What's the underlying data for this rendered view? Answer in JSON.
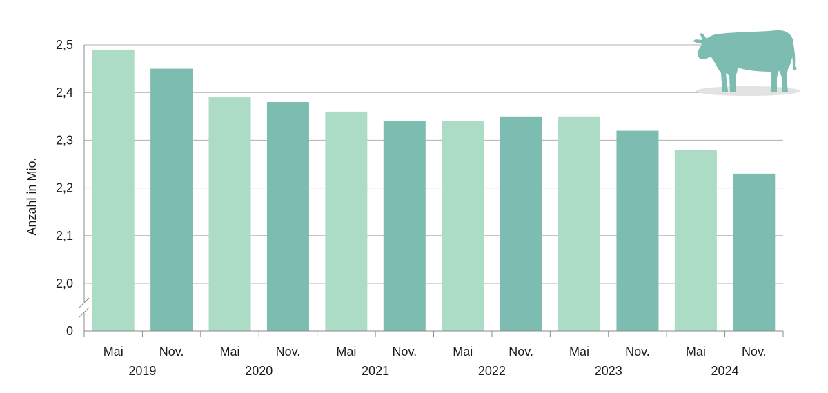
{
  "chart_data": {
    "type": "bar",
    "title": "",
    "xlabel": "",
    "ylabel": "Anzahl in Mio.",
    "ylim": [
      2.0,
      2.5
    ],
    "y_axis_break": true,
    "y_zero_label": "0",
    "y_ticks": [
      "2,0",
      "2,1",
      "2,2",
      "2,3",
      "2,4",
      "2,5"
    ],
    "y_tick_values": [
      2.0,
      2.1,
      2.2,
      2.3,
      2.4,
      2.5
    ],
    "grid": true,
    "icon": "cow-icon",
    "colors": {
      "mai": "#acdcc6",
      "nov": "#7dbcb0",
      "icon": "#7dbcb0",
      "icon_shadow": "#e3e3e3"
    },
    "groups": [
      {
        "year": "2019",
        "bars": [
          {
            "month": "Mai",
            "value": 2.49
          },
          {
            "month": "Nov.",
            "value": 2.45
          }
        ]
      },
      {
        "year": "2020",
        "bars": [
          {
            "month": "Mai",
            "value": 2.39
          },
          {
            "month": "Nov.",
            "value": 2.38
          }
        ]
      },
      {
        "year": "2021",
        "bars": [
          {
            "month": "Mai",
            "value": 2.36
          },
          {
            "month": "Nov.",
            "value": 2.34
          }
        ]
      },
      {
        "year": "2022",
        "bars": [
          {
            "month": "Mai",
            "value": 2.34
          },
          {
            "month": "Nov.",
            "value": 2.35
          }
        ]
      },
      {
        "year": "2023",
        "bars": [
          {
            "month": "Mai",
            "value": 2.35
          },
          {
            "month": "Nov.",
            "value": 2.32
          }
        ]
      },
      {
        "year": "2024",
        "bars": [
          {
            "month": "Mai",
            "value": 2.28
          },
          {
            "month": "Nov.",
            "value": 2.23
          }
        ]
      }
    ]
  }
}
